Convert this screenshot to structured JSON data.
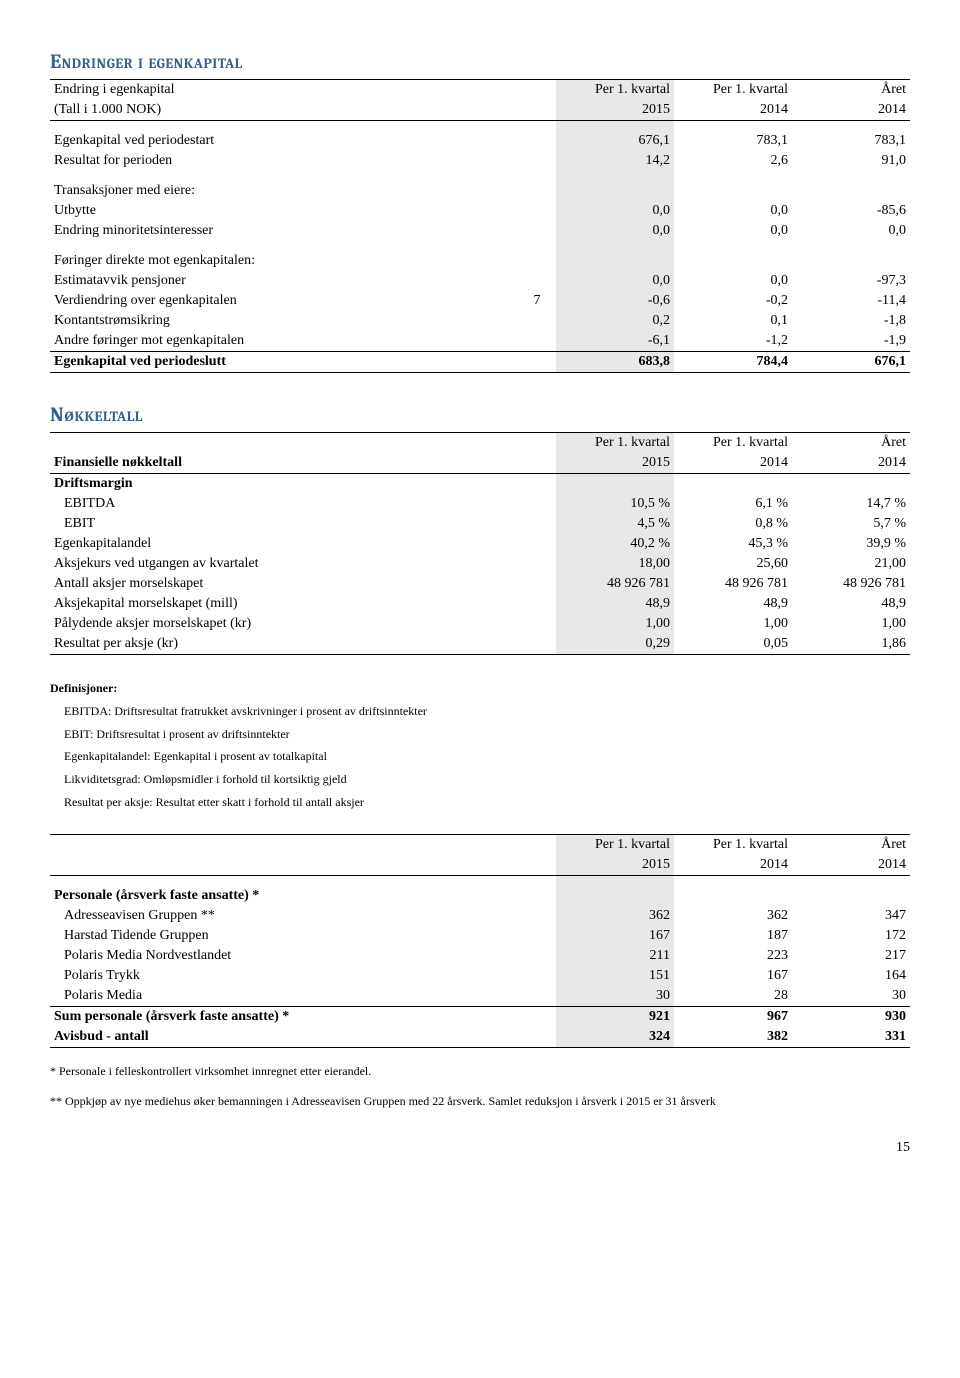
{
  "section1": {
    "title": "Endringer i egenkapital",
    "header": {
      "row_label": "Endring i egenkapital",
      "sub_label": "(Tall i 1.000 NOK)",
      "col1_a": "Per 1. kvartal",
      "col1_b": "2015",
      "col2_a": "Per 1. kvartal",
      "col2_b": "2014",
      "col3_a": "Året",
      "col3_b": "2014"
    },
    "rows": [
      {
        "label": "Egenkapital ved periodestart",
        "note": "",
        "c1": "676,1",
        "c2": "783,1",
        "c3": "783,1"
      },
      {
        "label": "Resultat for perioden",
        "note": "",
        "c1": "14,2",
        "c2": "2,6",
        "c3": "91,0"
      }
    ],
    "group2_label": "Transaksjoner med eiere:",
    "group2_rows": [
      {
        "label": "Utbytte",
        "note": "",
        "c1": "0,0",
        "c2": "0,0",
        "c3": "-85,6"
      },
      {
        "label": "Endring minoritetsinteresser",
        "note": "",
        "c1": "0,0",
        "c2": "0,0",
        "c3": "0,0"
      }
    ],
    "group3_label": "Føringer direkte mot egenkapitalen:",
    "group3_rows": [
      {
        "label": "Estimatavvik pensjoner",
        "note": "",
        "c1": "0,0",
        "c2": "0,0",
        "c3": "-97,3"
      },
      {
        "label": "Verdiendring over egenkapitalen",
        "note": "7",
        "c1": "-0,6",
        "c2": "-0,2",
        "c3": "-11,4"
      },
      {
        "label": "Kontantstrømsikring",
        "note": "",
        "c1": "0,2",
        "c2": "0,1",
        "c3": "-1,8"
      },
      {
        "label": "Andre føringer mot egenkapitalen",
        "note": "",
        "c1": "-6,1",
        "c2": "-1,2",
        "c3": "-1,9"
      }
    ],
    "total": {
      "label": "Egenkapital ved periodeslutt",
      "c1": "683,8",
      "c2": "784,4",
      "c3": "676,1"
    }
  },
  "section2": {
    "title": "Nøkkeltall",
    "header": {
      "row_label": "Finansielle nøkkeltall",
      "col1_a": "Per 1. kvartal",
      "col1_b": "2015",
      "col2_a": "Per 1. kvartal",
      "col2_b": "2014",
      "col3_a": "Året",
      "col3_b": "2014"
    },
    "margin_label": "Driftsmargin",
    "rows": [
      {
        "label": "EBITDA",
        "indent": true,
        "c1": "10,5 %",
        "c2": "6,1 %",
        "c3": "14,7 %"
      },
      {
        "label": "EBIT",
        "indent": true,
        "c1": "4,5 %",
        "c2": "0,8 %",
        "c3": "5,7 %"
      },
      {
        "label": "Egenkapitalandel",
        "c1": "40,2 %",
        "c2": "45,3 %",
        "c3": "39,9 %"
      },
      {
        "label": "Aksjekurs ved utgangen av kvartalet",
        "c1": "18,00",
        "c2": "25,60",
        "c3": "21,00"
      },
      {
        "label": "Antall aksjer morselskapet",
        "c1": "48 926 781",
        "c2": "48 926 781",
        "c3": "48 926 781"
      },
      {
        "label": "Aksjekapital morselskapet (mill)",
        "c1": "48,9",
        "c2": "48,9",
        "c3": "48,9"
      },
      {
        "label": "Pålydende aksjer morselskapet (kr)",
        "c1": "1,00",
        "c2": "1,00",
        "c3": "1,00"
      },
      {
        "label": "Resultat per aksje (kr)",
        "c1": "0,29",
        "c2": "0,05",
        "c3": "1,86"
      }
    ]
  },
  "defs": {
    "title": "Definisjoner:",
    "items": [
      "EBITDA: Driftsresultat fratrukket avskrivninger i prosent av driftsinntekter",
      "EBIT: Driftsresultat i prosent av driftsinntekter",
      "Egenkapitalandel: Egenkapital i prosent av totalkapital",
      "Likviditetsgrad: Omløpsmidler i forhold til kortsiktig gjeld",
      "Resultat per aksje: Resultat etter skatt i forhold til antall aksjer"
    ]
  },
  "section3": {
    "header": {
      "col1_a": "Per 1. kvartal",
      "col1_b": "2015",
      "col2_a": "Per 1. kvartal",
      "col2_b": "2014",
      "col3_a": "Året",
      "col3_b": "2014"
    },
    "group_label": "Personale (årsverk faste ansatte) *",
    "rows": [
      {
        "label": "Adresseavisen Gruppen **",
        "c1": "362",
        "c2": "362",
        "c3": "347"
      },
      {
        "label": "Harstad Tidende Gruppen",
        "c1": "167",
        "c2": "187",
        "c3": "172"
      },
      {
        "label": "Polaris Media Nordvestlandet",
        "c1": "211",
        "c2": "223",
        "c3": "217"
      },
      {
        "label": "Polaris Trykk",
        "c1": "151",
        "c2": "167",
        "c3": "164"
      },
      {
        "label": "Polaris Media",
        "c1": "30",
        "c2": "28",
        "c3": "30"
      }
    ],
    "total": {
      "label": "Sum personale (årsverk faste ansatte) *",
      "c1": "921",
      "c2": "967",
      "c3": "930"
    },
    "extra": {
      "label": "Avisbud - antall",
      "c1": "324",
      "c2": "382",
      "c3": "331"
    }
  },
  "footnotes": [
    "* Personale i felleskontrollert virksomhet innregnet etter eierandel.",
    "** Oppkjøp av nye mediehus øker bemanningen i Adresseavisen Gruppen med 22 årsverk. Samlet reduksjon i årsverk i 2015 er 31 årsverk"
  ],
  "page": "15"
}
